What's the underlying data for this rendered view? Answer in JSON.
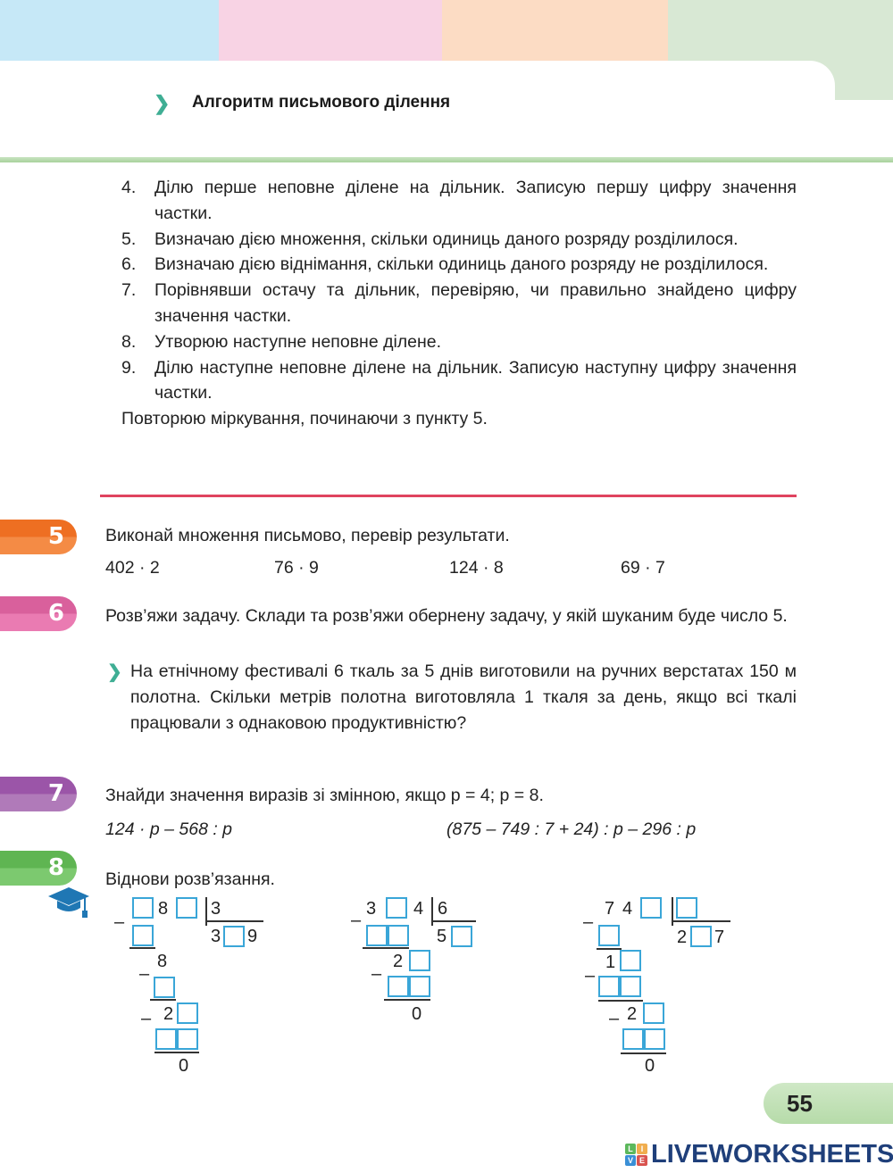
{
  "header": {
    "title": "Алгоритм письмового ділення",
    "colors": {
      "blue": "#c6e8f7",
      "pink": "#f8d3e4",
      "peach": "#fcdcc4",
      "green": "#d8e8d4"
    }
  },
  "steps": [
    {
      "n": "4.",
      "t": "Ділю перше неповне ділене на дільник. Записую першу цифру значення частки."
    },
    {
      "n": "5.",
      "t": "Визначаю дією множення, скільки одиниць даного розряду розділилося."
    },
    {
      "n": "6.",
      "t": "Визначаю дією віднімання, скільки одиниць даного розряду не розділилося."
    },
    {
      "n": "7.",
      "t": "Порівнявши остачу та дільник, перевіряю, чи правильно знайдено цифру значення частки."
    },
    {
      "n": "8.",
      "t": "Утворюю наступне неповне ділене."
    },
    {
      "n": "9.",
      "t": "Ділю наступне неповне ділене на дільник. Записую наступну цифру значення частки."
    }
  ],
  "repeat": "Повторюю міркування, починаючи з пункту 5.",
  "task5": {
    "num": "5",
    "color": "#f07c2c",
    "text": "Виконай множення письмово, перевір результати.",
    "exprs": [
      "402 · 2",
      "76 · 9",
      "124  · 8",
      "69 · 7"
    ]
  },
  "task6": {
    "num": "6",
    "color": "#e06aa5",
    "text": "Розв’яжи задачу. Склади та розв’яжи обернену задачу, у якій шуканим буде число 5.",
    "problem": "На етнічному фестивалі 6 ткаль за 5 днів виготовили на ручних верстатах 150 м полотна. Скільки метрів полотна виготовляла 1 ткаля за день, якщо всі ткалі працювали з однаковою продуктивністю?"
  },
  "task7": {
    "num": "7",
    "color": "#a361b0",
    "text": "Знайди значення виразів зі змінною, якщо p = 4; p = 8.",
    "expr1": "124 · p – 568 : p",
    "expr2": "(875 – 749 : 7 + 24) : p – 296 : p"
  },
  "task8": {
    "num": "8",
    "color": "#6cbf5e",
    "icon": "graduation-cap-icon",
    "text": "Віднови розв’язання.",
    "div1": {
      "a": "8",
      "divisor": "3",
      "q1": "3",
      "q3": "9",
      "r1": "8",
      "r2": "2",
      "zero": "0"
    },
    "div2": {
      "a": "3",
      "b": "4",
      "divisor": "6",
      "q1": "5",
      "r1": "2",
      "zero": "0"
    },
    "div3": {
      "a": "7",
      "b": "4",
      "q1": "2",
      "q3": "7",
      "r1": "1",
      "r2": "2",
      "zero": "0"
    },
    "minus": "–"
  },
  "page_number": "55",
  "watermark": {
    "text": "LIVEWORKSHEETS",
    "letters": [
      "L",
      "I",
      "V",
      "E"
    ]
  }
}
